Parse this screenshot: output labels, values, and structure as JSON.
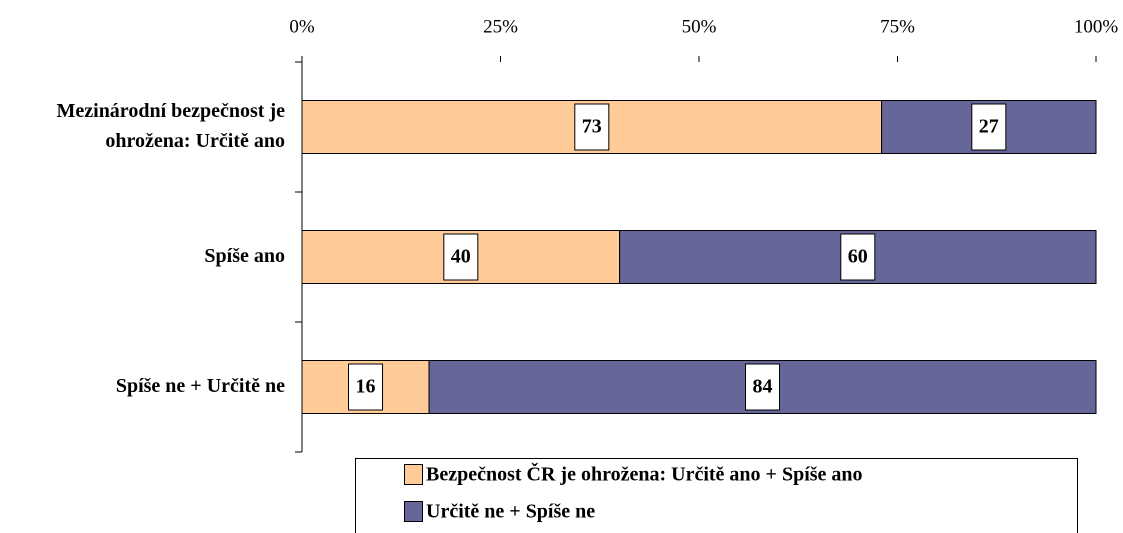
{
  "chart_data": {
    "type": "stacked_bar_horizontal",
    "categories": [
      "Mezinárodní bezpečnost je ohrožena: Určitě ano",
      "Spíše ano",
      "Spíše ne + Určitě ne"
    ],
    "series": [
      {
        "name": "Bezpečnost ČR je ohrožena: Určitě ano + Spíše ano",
        "color": "#ffcc99",
        "values": [
          73,
          40,
          16
        ]
      },
      {
        "name": "Určitě ne + Spíše ne",
        "color": "#666699",
        "values": [
          27,
          60,
          84
        ]
      }
    ],
    "xlim": [
      0,
      100
    ],
    "xticks": [
      {
        "value": 0,
        "label": "0%"
      },
      {
        "value": 25,
        "label": "25%"
      },
      {
        "value": 50,
        "label": "50%"
      },
      {
        "value": 75,
        "label": "75%"
      },
      {
        "value": 100,
        "label": "100%"
      }
    ],
    "legend": "bottom"
  }
}
